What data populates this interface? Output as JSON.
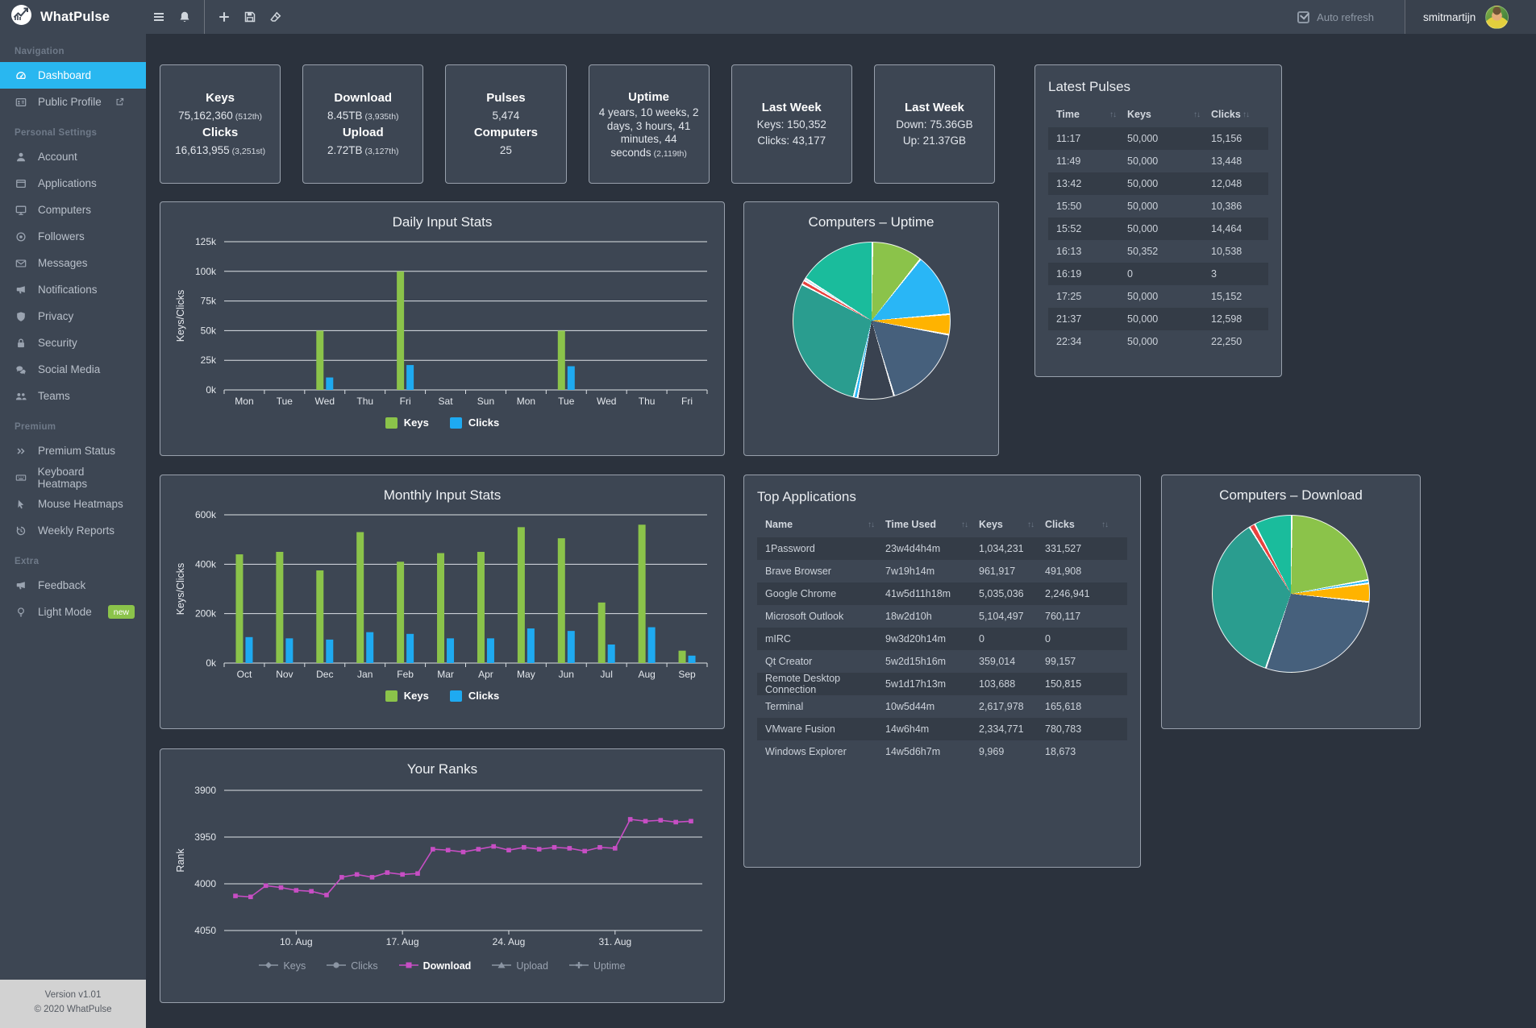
{
  "app": {
    "title": "WhatPulse",
    "auto_refresh": "Auto refresh",
    "username": "smitmartijn"
  },
  "topbar_icons": [
    "hamburger-icon",
    "bell-icon",
    "plus-icon",
    "save-icon",
    "eraser-icon"
  ],
  "sidebar": {
    "sections": [
      {
        "header": "Navigation",
        "items": [
          {
            "label": "Dashboard",
            "icon": "dashboard-icon",
            "active": true
          },
          {
            "label": "Public Profile",
            "icon": "id-card-icon",
            "external": true
          }
        ]
      },
      {
        "header": "Personal Settings",
        "items": [
          {
            "label": "Account",
            "icon": "user-icon"
          },
          {
            "label": "Applications",
            "icon": "window-icon"
          },
          {
            "label": "Computers",
            "icon": "desktop-icon"
          },
          {
            "label": "Followers",
            "icon": "dot-circle-icon"
          },
          {
            "label": "Messages",
            "icon": "envelope-icon"
          },
          {
            "label": "Notifications",
            "icon": "bullhorn-icon"
          },
          {
            "label": "Privacy",
            "icon": "shield-icon"
          },
          {
            "label": "Security",
            "icon": "lock-icon"
          },
          {
            "label": "Social Media",
            "icon": "comments-icon"
          },
          {
            "label": "Teams",
            "icon": "users-icon"
          }
        ]
      },
      {
        "header": "Premium",
        "items": [
          {
            "label": "Premium Status",
            "icon": "double-chevron-icon"
          },
          {
            "label": "Keyboard Heatmaps",
            "icon": "keyboard-icon"
          },
          {
            "label": "Mouse Heatmaps",
            "icon": "mouse-pointer-icon"
          },
          {
            "label": "Weekly Reports",
            "icon": "history-icon"
          }
        ]
      },
      {
        "header": "Extra",
        "items": [
          {
            "label": "Feedback",
            "icon": "bullhorn-icon"
          },
          {
            "label": "Light Mode",
            "icon": "lightbulb-icon",
            "badge": "new"
          }
        ]
      }
    ],
    "footer": {
      "version": "Version v1.01",
      "copyright": "© 2020 WhatPulse"
    }
  },
  "stat_cards": [
    {
      "lines": [
        {
          "t": "Keys",
          "b": true
        },
        {
          "t": "75,162,360",
          "rank": "(512th)"
        },
        {
          "t": "Clicks",
          "b": true
        },
        {
          "t": "16,613,955",
          "rank": "(3,251st)"
        }
      ]
    },
    {
      "lines": [
        {
          "t": "Download",
          "b": true
        },
        {
          "t": "8.45TB",
          "rank": "(3,935th)"
        },
        {
          "t": "Upload",
          "b": true
        },
        {
          "t": "2.72TB",
          "rank": "(3,127th)"
        }
      ]
    },
    {
      "lines": [
        {
          "t": "Pulses",
          "b": true
        },
        {
          "t": "5,474"
        },
        {
          "t": "Computers",
          "b": true
        },
        {
          "t": "25"
        }
      ]
    },
    {
      "lines": [
        {
          "t": "Uptime",
          "b": true
        },
        {
          "t": "4 years, 10 weeks, 2 days, 3 hours, 41 minutes, 44 seconds",
          "rank": "(2,119th)",
          "wrap": true
        }
      ]
    },
    {
      "lines": [
        {
          "t": "Last Week",
          "b": true
        },
        {
          "t": "Keys: 150,352"
        },
        {
          "t": "Clicks: 43,177"
        }
      ]
    },
    {
      "lines": [
        {
          "t": "Last Week",
          "b": true
        },
        {
          "t": "Down: 75.36GB"
        },
        {
          "t": "Up: 21.37GB"
        }
      ]
    }
  ],
  "latest_pulses": {
    "title": "Latest Pulses",
    "columns": [
      "Time",
      "Keys",
      "Clicks"
    ],
    "rows": [
      [
        "11:17",
        "50,000",
        "15,156"
      ],
      [
        "11:49",
        "50,000",
        "13,448"
      ],
      [
        "13:42",
        "50,000",
        "12,048"
      ],
      [
        "15:50",
        "50,000",
        "10,386"
      ],
      [
        "15:52",
        "50,000",
        "14,464"
      ],
      [
        "16:13",
        "50,352",
        "10,538"
      ],
      [
        "16:19",
        "0",
        "3"
      ],
      [
        "17:25",
        "50,000",
        "15,152"
      ],
      [
        "21:37",
        "50,000",
        "12,598"
      ],
      [
        "22:34",
        "50,000",
        "22,250"
      ]
    ]
  },
  "top_applications": {
    "title": "Top Applications",
    "columns": [
      "Name",
      "Time Used",
      "Keys",
      "Clicks"
    ],
    "rows": [
      [
        "1Password",
        "23w4d4h4m",
        "1,034,231",
        "331,527"
      ],
      [
        "Brave Browser",
        "7w19h14m",
        "961,917",
        "491,908"
      ],
      [
        "Google Chrome",
        "41w5d11h18m",
        "5,035,036",
        "2,246,941"
      ],
      [
        "Microsoft Outlook",
        "18w2d10h",
        "5,104,497",
        "760,117"
      ],
      [
        "mIRC",
        "9w3d20h14m",
        "0",
        "0"
      ],
      [
        "Qt Creator",
        "5w2d15h16m",
        "359,014",
        "99,157"
      ],
      [
        "Remote Desktop Connection",
        "5w1d17h13m",
        "103,688",
        "150,815"
      ],
      [
        "Terminal",
        "10w5d44m",
        "2,617,978",
        "165,618"
      ],
      [
        "VMware Fusion",
        "14w6h4m",
        "2,334,771",
        "780,783"
      ],
      [
        "Windows Explorer",
        "14w5d6h7m",
        "9,969",
        "18,673"
      ]
    ]
  },
  "chart_data": [
    {
      "id": "daily",
      "type": "bar",
      "title": "Daily Input Stats",
      "ylabel": "Keys/Clicks",
      "categories": [
        "Mon",
        "Tue",
        "Wed",
        "Thu",
        "Fri",
        "Sat",
        "Sun",
        "Mon",
        "Tue",
        "Wed",
        "Thu",
        "Fri"
      ],
      "series": [
        {
          "name": "Keys",
          "color": "#8bc34a",
          "values": [
            0,
            0,
            50000,
            0,
            100000,
            0,
            0,
            0,
            50000,
            0,
            0,
            0
          ]
        },
        {
          "name": "Clicks",
          "color": "#1eaaf1",
          "values": [
            0,
            0,
            10500,
            0,
            21000,
            0,
            0,
            0,
            20000,
            0,
            0,
            0
          ]
        }
      ],
      "ylim": [
        0,
        125000
      ],
      "yticks": [
        0,
        25000,
        50000,
        75000,
        100000,
        125000
      ],
      "grid": true,
      "legend_position": "bottom"
    },
    {
      "id": "uptime-pie",
      "type": "pie",
      "title": "Computers – Uptime",
      "slices": [
        {
          "color": "#8bc34a",
          "value": 10.5
        },
        {
          "color": "#29b6f6",
          "value": 13
        },
        {
          "color": "#ffb300",
          "value": 4.2
        },
        {
          "color": "#46607c",
          "value": 17.5
        },
        {
          "color": "#394250",
          "value": 7.5
        },
        {
          "color": "#29b6f6",
          "value": 0.8
        },
        {
          "color": "#2a9d8f",
          "value": 29
        },
        {
          "color": "#e8433f",
          "value": 0.9
        },
        {
          "color": "#9fd3e8",
          "value": 0.5
        },
        {
          "color": "#1abc9c",
          "value": 16.1
        }
      ]
    },
    {
      "id": "monthly",
      "type": "bar",
      "title": "Monthly Input Stats",
      "ylabel": "Keys/Clicks",
      "categories": [
        "Oct",
        "Nov",
        "Dec",
        "Jan",
        "Feb",
        "Mar",
        "Apr",
        "May",
        "Jun",
        "Jul",
        "Aug",
        "Sep"
      ],
      "series": [
        {
          "name": "Keys",
          "color": "#8bc34a",
          "values": [
            440000,
            450000,
            375000,
            530000,
            410000,
            445000,
            450000,
            550000,
            505000,
            245000,
            560000,
            50000
          ]
        },
        {
          "name": "Clicks",
          "color": "#1eaaf1",
          "values": [
            105000,
            100000,
            95000,
            125000,
            118000,
            100000,
            100000,
            140000,
            130000,
            75000,
            145000,
            30000
          ]
        }
      ],
      "ylim": [
        0,
        600000
      ],
      "yticks": [
        0,
        200000,
        400000,
        600000
      ],
      "grid": true,
      "legend_position": "bottom"
    },
    {
      "id": "download-pie",
      "type": "pie",
      "title": "Computers – Download",
      "slices": [
        {
          "color": "#8bc34a",
          "value": 22
        },
        {
          "color": "#29b6f6",
          "value": 0.7
        },
        {
          "color": "#ffb300",
          "value": 3.8
        },
        {
          "color": "#46607c",
          "value": 28.5
        },
        {
          "color": "#2a9d8f",
          "value": 36
        },
        {
          "color": "#e8433f",
          "value": 1.2
        },
        {
          "color": "#1abc9c",
          "value": 7.8
        }
      ]
    },
    {
      "id": "ranks",
      "type": "line",
      "title": "Your Ranks",
      "ylabel": "Rank",
      "y_inverted": true,
      "ylim": [
        3900,
        4050
      ],
      "yticks": [
        3900,
        3950,
        4000,
        4050
      ],
      "xticks": [
        {
          "index": 4,
          "label": "10. Aug"
        },
        {
          "index": 11,
          "label": "17. Aug"
        },
        {
          "index": 18,
          "label": "24. Aug"
        },
        {
          "index": 25,
          "label": "31. Aug"
        }
      ],
      "series": [
        {
          "name": "Download",
          "color": "#c74ec4",
          "values": [
            4013,
            4014,
            4002,
            4004,
            4007,
            4008,
            4012,
            3993,
            3990,
            3993,
            3988,
            3990,
            3989,
            3963,
            3964,
            3966,
            3963,
            3960,
            3964,
            3961,
            3963,
            3961,
            3962,
            3965,
            3961,
            3962,
            3931,
            3933,
            3932,
            3934,
            3933
          ]
        }
      ],
      "legend": [
        {
          "label": "Keys",
          "marker": "diamond",
          "active": false
        },
        {
          "label": "Clicks",
          "marker": "circle",
          "active": false
        },
        {
          "label": "Download",
          "marker": "square",
          "active": true
        },
        {
          "label": "Upload",
          "marker": "triangle",
          "active": false
        },
        {
          "label": "Uptime",
          "marker": "cross",
          "active": false
        }
      ]
    }
  ],
  "colors": {
    "accent_blue": "#29b7f0",
    "keys_green": "#8bc34a",
    "clicks_blue": "#1eaaf1",
    "rank_magenta": "#c74ec4",
    "badge_green": "#8bc34a"
  }
}
